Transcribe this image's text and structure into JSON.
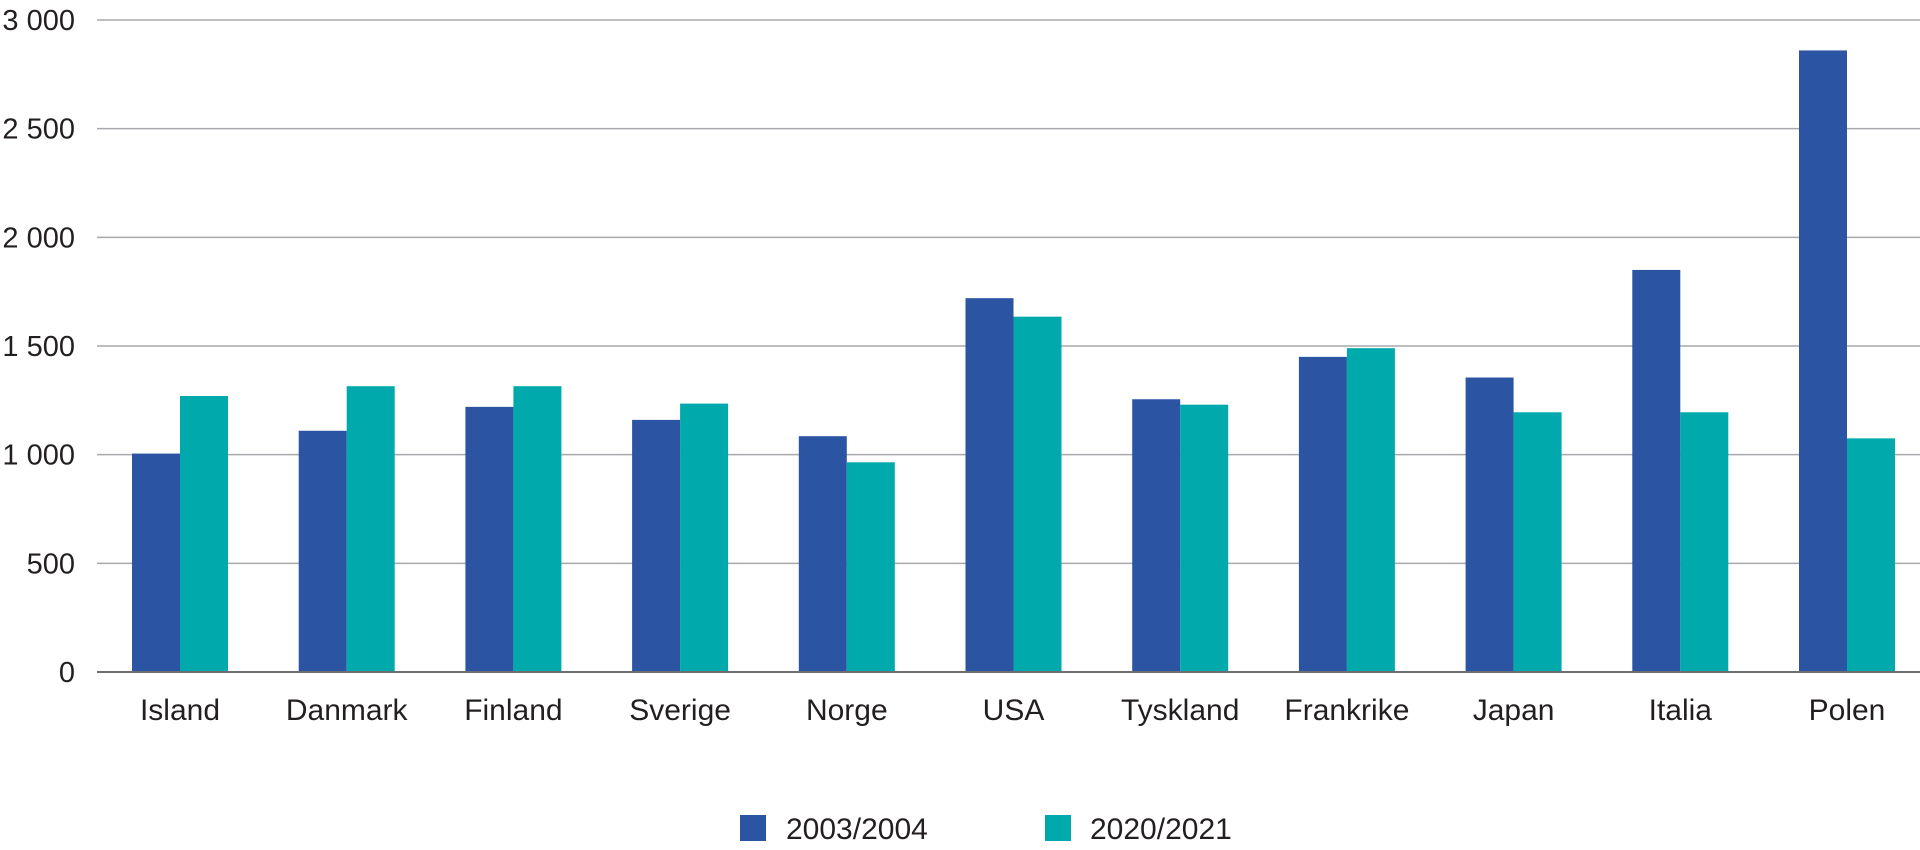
{
  "chart_data": {
    "type": "bar",
    "title": "",
    "xlabel": "",
    "ylabel": "",
    "ylim": [
      0,
      3000
    ],
    "yticks": [
      0,
      500,
      1000,
      1500,
      2000,
      2500,
      3000
    ],
    "ytick_labels": [
      "0",
      "500",
      "1 000",
      "1 500",
      "2 000",
      "2 500",
      "3 000"
    ],
    "grid": true,
    "legend_position": "bottom-center",
    "categories": [
      "Island",
      "Danmark",
      "Finland",
      "Sverige",
      "Norge",
      "USA",
      "Tyskland",
      "Frankrike",
      "Japan",
      "Italia",
      "Polen"
    ],
    "series": [
      {
        "name": "2003/2004",
        "color": "#2b55a3",
        "values": [
          1005,
          1110,
          1220,
          1160,
          1085,
          1720,
          1255,
          1450,
          1355,
          1850,
          2860
        ]
      },
      {
        "name": "2020/2021",
        "color": "#00aaac",
        "values": [
          1270,
          1315,
          1315,
          1235,
          965,
          1635,
          1230,
          1490,
          1195,
          1195,
          1075
        ]
      }
    ]
  }
}
